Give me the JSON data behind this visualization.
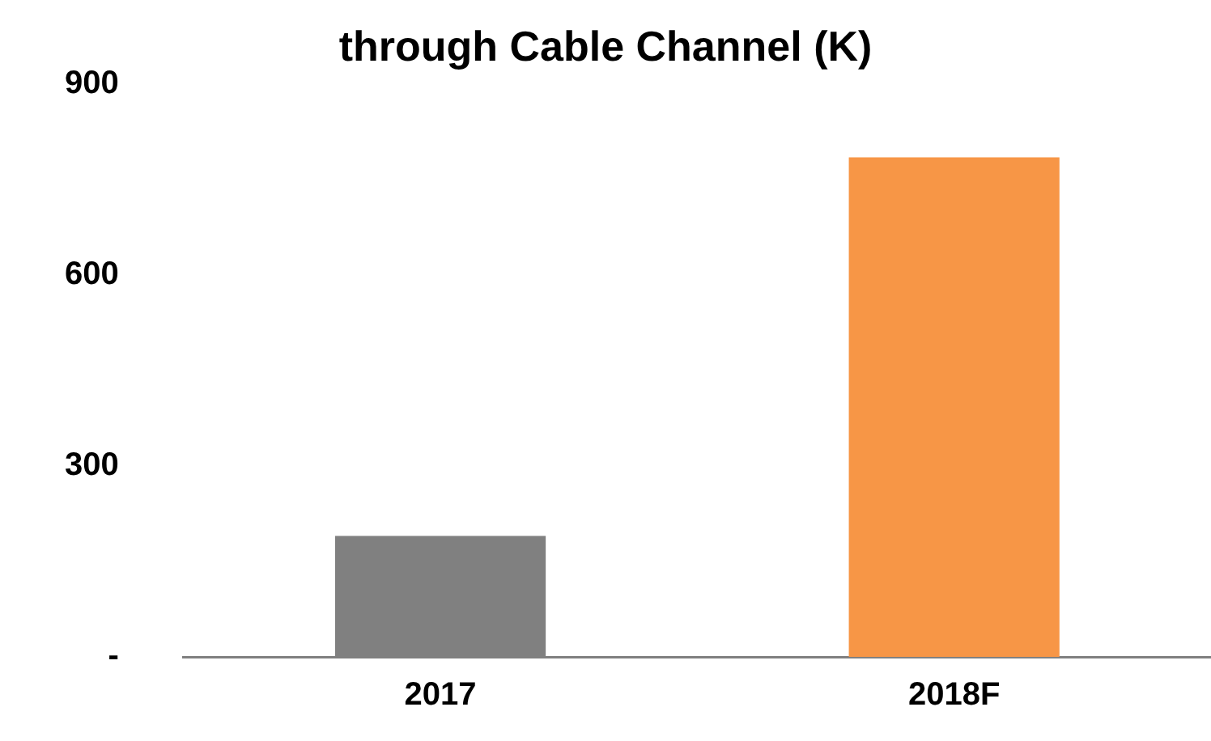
{
  "chart_data": {
    "type": "bar",
    "title": "through Cable Channel (K)",
    "categories": [
      "2017",
      "2018F"
    ],
    "values": [
      190,
      785
    ],
    "colors": [
      "#808080",
      "#f79646"
    ],
    "ylim": [
      0,
      900
    ],
    "yticks": [
      {
        "value": 0,
        "label": "-"
      },
      300,
      600,
      900
    ],
    "grid": false,
    "legend": false
  }
}
